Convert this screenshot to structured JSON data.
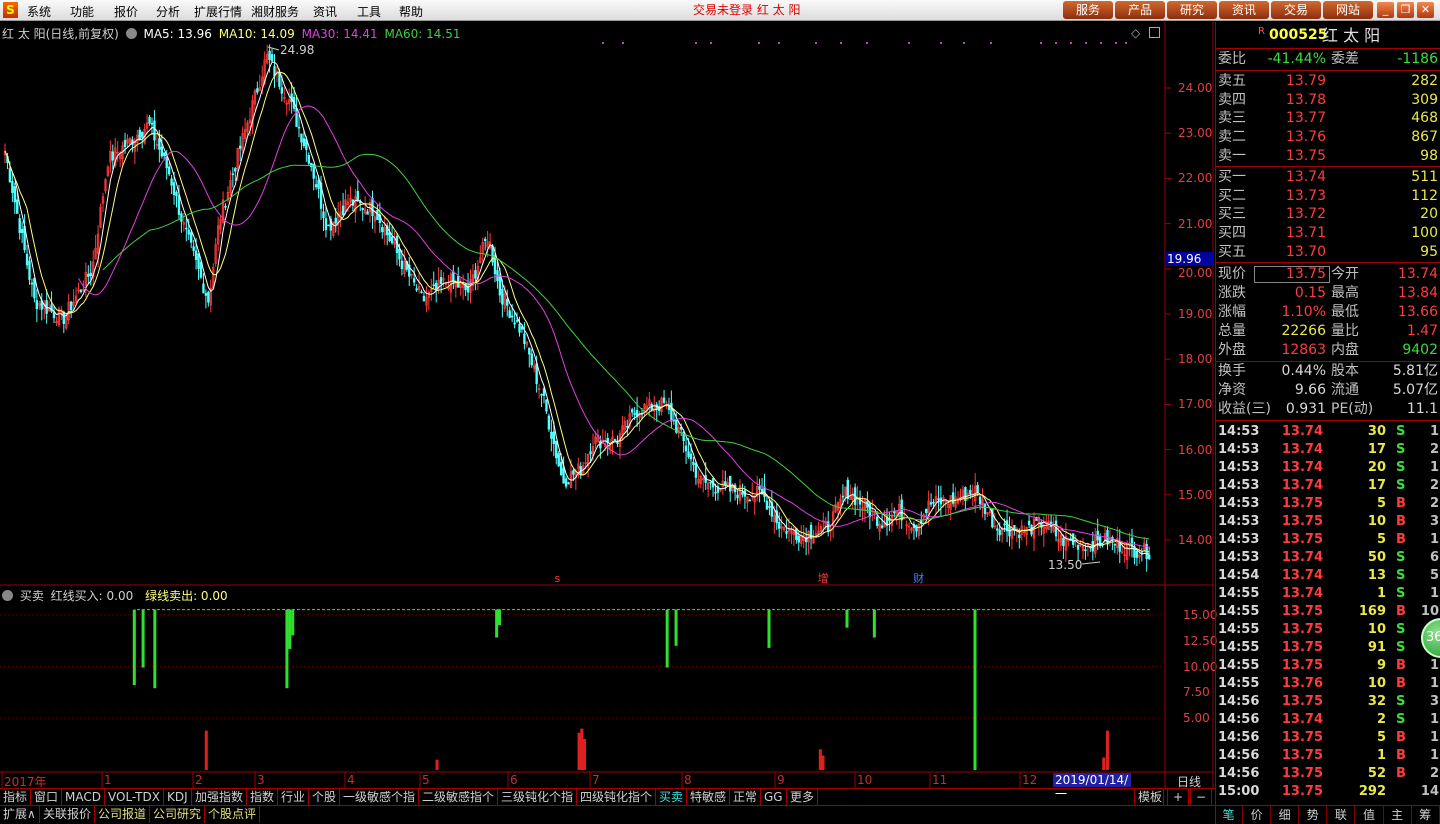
{
  "menubar": {
    "items": [
      "系统",
      "功能",
      "报价",
      "分析",
      "扩展行情",
      "湘财服务",
      "资讯",
      "工具",
      "帮助"
    ],
    "status": "交易未登录  红 太 阳",
    "buttons": [
      "服务",
      "产品",
      "研究",
      "资讯",
      "交易",
      "网站"
    ],
    "window_controls": [
      "minimize",
      "restore",
      "close"
    ]
  },
  "chart_header": {
    "title": "红 太 阳(日线,前复权)",
    "ma5": "MA5: 13.96",
    "ma10": "MA10: 14.09",
    "ma30": "MA30: 14.41",
    "ma60": "MA60: 14.51",
    "colors": {
      "ma5": "#ffffff",
      "ma10": "#ffff80",
      "ma30": "#e040e0",
      "ma60": "#40d040",
      "up": "#ff3c3c",
      "down": "#54ffff"
    }
  },
  "price_axis": {
    "ticks": [
      "24.00",
      "23.00",
      "22.00",
      "21.00",
      "20.00",
      "19.00",
      "18.00",
      "17.00",
      "16.00",
      "15.00",
      "14.00"
    ],
    "cursor_value": "19.96"
  },
  "annotations": {
    "high": "24.98",
    "low": "13.50",
    "markers": [
      {
        "text": "s",
        "date": "2018-06-18",
        "color": "#ff3c3c"
      },
      {
        "text": "增",
        "date": "2018-09-17",
        "color": "#ff3c3c"
      },
      {
        "text": "财",
        "date": "2018-10-25",
        "color": "#4080ff"
      }
    ]
  },
  "indicator_header": {
    "name": "买卖",
    "red": "红线买入: 0.00",
    "green": "绿线卖出: 0.00"
  },
  "indicator_axis": {
    "ticks": [
      "15.00",
      "12.50",
      "10.00",
      "7.50",
      "5.00"
    ]
  },
  "x_axis": {
    "labels": [
      "2017年",
      "1",
      "2",
      "3",
      "4",
      "5",
      "6",
      "7",
      "8",
      "9",
      "10",
      "11",
      "12"
    ],
    "cursor_date": "2019/01/14/一",
    "period": "日线"
  },
  "chart_data": [
    {
      "type": "candlestick",
      "ylim": [
        13.2,
        25.0
      ],
      "closes": [
        [
          "2017-12-04",
          21.85
        ],
        [
          "2017-12-11",
          19.3
        ],
        [
          "2017-12-20",
          18.9
        ],
        [
          "2017-12-29",
          20.0
        ],
        [
          "2018-01-03",
          22.4
        ],
        [
          "2018-01-17",
          23.2
        ],
        [
          "2018-01-24",
          22.1
        ],
        [
          "2018-01-29",
          20.9
        ],
        [
          "2018-02-08",
          19.3
        ],
        [
          "2018-02-13",
          21.1
        ],
        [
          "2018-02-26",
          23.3
        ],
        [
          "2018-03-05",
          24.7
        ],
        [
          "2018-03-13",
          23.7
        ],
        [
          "2018-03-20",
          22.4
        ],
        [
          "2018-03-26",
          20.9
        ],
        [
          "2018-04-02",
          21.5
        ],
        [
          "2018-04-13",
          21.3
        ],
        [
          "2018-04-25",
          20.0
        ],
        [
          "2018-05-02",
          19.3
        ],
        [
          "2018-05-11",
          19.75
        ],
        [
          "2018-05-18",
          19.5
        ],
        [
          "2018-05-25",
          20.75
        ],
        [
          "2018-05-29",
          19.5
        ],
        [
          "2018-06-06",
          18.6
        ],
        [
          "2018-06-14",
          17.1
        ],
        [
          "2018-06-21",
          15.3
        ],
        [
          "2018-06-28",
          15.6
        ],
        [
          "2018-07-02",
          16.2
        ],
        [
          "2018-07-10",
          16.2
        ],
        [
          "2018-07-17",
          16.9
        ],
        [
          "2018-07-26",
          17.0
        ],
        [
          "2018-07-31",
          16.4
        ],
        [
          "2018-08-07",
          15.3
        ],
        [
          "2018-08-17",
          15.1
        ],
        [
          "2018-08-28",
          15.0
        ],
        [
          "2018-09-03",
          14.3
        ],
        [
          "2018-09-11",
          14.1
        ],
        [
          "2018-09-21",
          14.3
        ],
        [
          "2018-09-28",
          15.1
        ],
        [
          "2018-10-12",
          14.4
        ],
        [
          "2018-10-19",
          14.65
        ],
        [
          "2018-10-26",
          14.3
        ],
        [
          "2018-11-01",
          14.8
        ],
        [
          "2018-11-09",
          14.9
        ],
        [
          "2018-11-16",
          15.1
        ],
        [
          "2018-11-23",
          14.3
        ],
        [
          "2018-12-03",
          14.2
        ],
        [
          "2018-12-10",
          14.4
        ],
        [
          "2018-12-17",
          14.0
        ],
        [
          "2018-12-27",
          13.9
        ],
        [
          "2019-01-03",
          14.0
        ],
        [
          "2019-01-09",
          13.8
        ],
        [
          "2019-01-14",
          13.75
        ]
      ]
    },
    {
      "type": "bar",
      "name": "买卖",
      "ylim": [
        0,
        16
      ],
      "green_reference": 15.5,
      "green": [
        [
          "2018-01-12",
          8.2
        ],
        [
          "2018-01-15",
          9.9
        ],
        [
          "2018-01-19",
          7.9
        ],
        [
          "2018-03-12",
          7.9
        ],
        [
          "2018-03-13",
          11.7
        ],
        [
          "2018-03-14",
          13.0
        ],
        [
          "2018-05-28",
          12.8
        ],
        [
          "2018-05-29",
          14.0
        ],
        [
          "2018-07-27",
          9.9
        ],
        [
          "2018-07-30",
          12.0
        ],
        [
          "2018-08-30",
          11.8
        ],
        [
          "2018-09-28",
          13.75
        ],
        [
          "2018-10-09",
          12.8
        ],
        [
          "2018-11-16",
          0
        ]
      ],
      "red": [
        [
          "2018-02-07",
          3.8
        ],
        [
          "2018-05-07",
          1.0
        ],
        [
          "2018-06-27",
          3.6
        ],
        [
          "2018-06-28",
          4.0
        ],
        [
          "2018-06-29",
          3.0
        ],
        [
          "2018-09-18",
          2.0
        ],
        [
          "2018-09-19",
          1.4
        ],
        [
          "2019-01-02",
          1.2
        ],
        [
          "2019-01-03",
          3.8
        ]
      ]
    }
  ],
  "bottom_tabs": [
    "指标",
    "窗口",
    "MACD",
    "VOL-TDX",
    "KDJ",
    "加强指数",
    "指数",
    "行业",
    "个股",
    "一级敏感个指",
    "二级敏感指个",
    "三级钝化个指",
    "四级钝化指个",
    "买卖",
    "特敏感",
    "正常",
    "GG",
    "更多"
  ],
  "bottom_tabs_active": "买卖",
  "bottom_right": {
    "template": "模板",
    "plus": "+",
    "minus": "−"
  },
  "bottom_tabs2": [
    "扩展∧",
    "关联报价",
    "公司报道",
    "公司研究",
    "个股点评"
  ],
  "quote": {
    "badge": "R",
    "code": "000525",
    "name": "红 太 阳",
    "wei_bi_label": "委比",
    "wei_bi": "-41.44%",
    "wei_cha_label": "委差",
    "wei_cha": "-1186",
    "sells": [
      {
        "l": "卖五",
        "p": "13.79",
        "v": "282"
      },
      {
        "l": "卖四",
        "p": "13.78",
        "v": "309"
      },
      {
        "l": "卖三",
        "p": "13.77",
        "v": "468"
      },
      {
        "l": "卖二",
        "p": "13.76",
        "v": "867"
      },
      {
        "l": "卖一",
        "p": "13.75",
        "v": "98"
      }
    ],
    "buys": [
      {
        "l": "买一",
        "p": "13.74",
        "v": "511"
      },
      {
        "l": "买二",
        "p": "13.73",
        "v": "112"
      },
      {
        "l": "买三",
        "p": "13.72",
        "v": "20"
      },
      {
        "l": "买四",
        "p": "13.71",
        "v": "100"
      },
      {
        "l": "买五",
        "p": "13.70",
        "v": "95"
      }
    ],
    "stats": [
      {
        "l1": "现价",
        "v1": "13.75",
        "c1": "red",
        "l2": "今开",
        "v2": "13.74",
        "c2": "red"
      },
      {
        "l1": "涨跌",
        "v1": "0.15",
        "c1": "red",
        "l2": "最高",
        "v2": "13.84",
        "c2": "red"
      },
      {
        "l1": "涨幅",
        "v1": "1.10%",
        "c1": "red",
        "l2": "最低",
        "v2": "13.66",
        "c2": "red"
      },
      {
        "l1": "总量",
        "v1": "22266",
        "c1": "yel",
        "l2": "量比",
        "v2": "1.47",
        "c2": "red"
      },
      {
        "l1": "外盘",
        "v1": "12863",
        "c1": "red",
        "l2": "内盘",
        "v2": "9402",
        "c2": "grn"
      }
    ],
    "stats2": [
      {
        "l1": "换手",
        "v1": "0.44%",
        "l2": "股本",
        "v2": "5.81亿"
      },
      {
        "l1": "净资",
        "v1": "9.66",
        "l2": "流通",
        "v2": "5.07亿"
      },
      {
        "l1": "收益(三)",
        "v1": "0.931",
        "l2": "PE(动)",
        "v2": "11.1"
      }
    ]
  },
  "ticks": [
    [
      "14:53",
      "13.74",
      "30",
      "S",
      "1"
    ],
    [
      "14:53",
      "13.74",
      "17",
      "S",
      "2"
    ],
    [
      "14:53",
      "13.74",
      "20",
      "S",
      "1"
    ],
    [
      "14:53",
      "13.74",
      "17",
      "S",
      "2"
    ],
    [
      "14:53",
      "13.75",
      "5",
      "B",
      "2"
    ],
    [
      "14:53",
      "13.75",
      "10",
      "B",
      "3"
    ],
    [
      "14:53",
      "13.75",
      "5",
      "B",
      "1"
    ],
    [
      "14:53",
      "13.74",
      "50",
      "S",
      "6"
    ],
    [
      "14:54",
      "13.74",
      "13",
      "S",
      "5"
    ],
    [
      "14:55",
      "13.74",
      "1",
      "S",
      "1"
    ],
    [
      "14:55",
      "13.75",
      "169",
      "B",
      "10"
    ],
    [
      "14:55",
      "13.75",
      "10",
      "S",
      ""
    ],
    [
      "14:55",
      "13.75",
      "91",
      "S",
      ""
    ],
    [
      "14:55",
      "13.75",
      "9",
      "B",
      "1"
    ],
    [
      "14:55",
      "13.76",
      "10",
      "B",
      "1"
    ],
    [
      "14:56",
      "13.75",
      "32",
      "S",
      "3"
    ],
    [
      "14:56",
      "13.74",
      "2",
      "S",
      "1"
    ],
    [
      "14:56",
      "13.75",
      "5",
      "B",
      "1"
    ],
    [
      "14:56",
      "13.75",
      "1",
      "B",
      "1"
    ],
    [
      "14:56",
      "13.75",
      "52",
      "B",
      "2"
    ],
    [
      "15:00",
      "13.75",
      "292",
      "",
      "14"
    ]
  ],
  "floating_badge": "36",
  "side_tabs": [
    "笔",
    "价",
    "细",
    "势",
    "联",
    "值",
    "主",
    "筹"
  ],
  "side_tabs_active": "笔"
}
